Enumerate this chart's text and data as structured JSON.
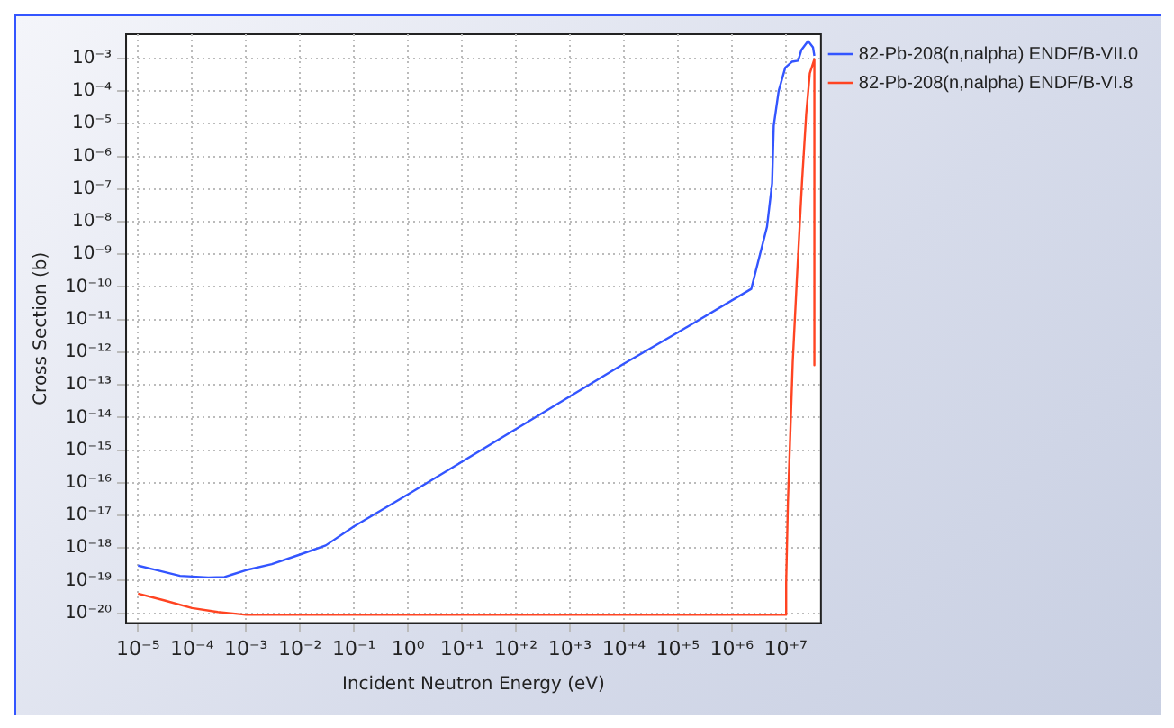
{
  "chart_data": {
    "type": "line",
    "xlabel": "Incident Neutron Energy (eV)",
    "ylabel": "Cross Section (b)",
    "log": "xy",
    "grid": true,
    "legend": "top right",
    "marker": "none",
    "line_style": "solid",
    "xlim": [
      6e-06,
      45000000.0
    ],
    "ylim": [
      5e-21,
      0.0055
    ],
    "xticks": [
      {
        "value": 1e-05,
        "label": "10⁻⁵"
      },
      {
        "value": 0.0001,
        "label": "10⁻⁴"
      },
      {
        "value": 0.001,
        "label": "10⁻³"
      },
      {
        "value": 0.01,
        "label": "10⁻²"
      },
      {
        "value": 0.1,
        "label": "10⁻¹"
      },
      {
        "value": 1,
        "label": "10⁰"
      },
      {
        "value": 10,
        "label": "10⁺¹"
      },
      {
        "value": 100,
        "label": "10⁺²"
      },
      {
        "value": 1000.0,
        "label": "10⁺³"
      },
      {
        "value": 10000.0,
        "label": "10⁺⁴"
      },
      {
        "value": 100000.0,
        "label": "10⁺⁵"
      },
      {
        "value": 1000000.0,
        "label": "10⁺⁶"
      },
      {
        "value": 10000000.0,
        "label": "10⁺⁷"
      }
    ],
    "yticks": [
      {
        "value": 1e-20,
        "label": "10⁻²⁰"
      },
      {
        "value": 1e-19,
        "label": "10⁻¹⁹"
      },
      {
        "value": 1e-18,
        "label": "10⁻¹⁸"
      },
      {
        "value": 1e-17,
        "label": "10⁻¹⁷"
      },
      {
        "value": 1e-16,
        "label": "10⁻¹⁶"
      },
      {
        "value": 1e-15,
        "label": "10⁻¹⁵"
      },
      {
        "value": 1e-14,
        "label": "10⁻¹⁴"
      },
      {
        "value": 1e-13,
        "label": "10⁻¹³"
      },
      {
        "value": 1e-12,
        "label": "10⁻¹²"
      },
      {
        "value": 1e-11,
        "label": "10⁻¹¹"
      },
      {
        "value": 1e-10,
        "label": "10⁻¹⁰"
      },
      {
        "value": 1e-09,
        "label": "10⁻⁹"
      },
      {
        "value": 1e-08,
        "label": "10⁻⁸"
      },
      {
        "value": 1e-07,
        "label": "10⁻⁷"
      },
      {
        "value": 1e-06,
        "label": "10⁻⁶"
      },
      {
        "value": 1e-05,
        "label": "10⁻⁵"
      },
      {
        "value": 0.0001,
        "label": "10⁻⁴"
      },
      {
        "value": 0.001,
        "label": "10⁻³"
      }
    ],
    "series": [
      {
        "name": "82-Pb-208(n,nalpha) ENDF/B-VII.0",
        "color": "#3355ff",
        "x": [
          1e-05,
          2e-05,
          6e-05,
          0.0002,
          0.0004,
          0.001,
          0.003,
          0.01,
          0.03,
          0.1,
          1,
          10,
          100,
          1000.0,
          10000.0,
          100000.0,
          2300000.0,
          4500000.0,
          5600000.0,
          6000000.0,
          7400000.0,
          9800000.0,
          13000000.0,
          17000000.0,
          19500000.0,
          26000000.0,
          32000000.0,
          34000000.0
        ],
        "values": [
          2.9e-19,
          2.2e-19,
          1.4e-19,
          1.26e-19,
          1.3e-19,
          2.1e-19,
          3.2e-19,
          6.3e-19,
          1.2e-18,
          4.6e-18,
          4.4e-17,
          4.4e-16,
          4.4e-15,
          4.4e-14,
          4.4e-13,
          4e-12,
          8.7e-11,
          6.9e-09,
          1.5e-07,
          8.7e-06,
          0.0001,
          0.00052,
          0.00079,
          0.00085,
          0.0018,
          0.0034,
          0.0022,
          0.0012
        ]
      },
      {
        "name": "82-Pb-208(n,nalpha) ENDF/B-VI.8",
        "color": "#ff4422",
        "x": [
          1e-05,
          3e-05,
          0.0001,
          0.0003,
          0.001,
          0.01,
          0.1,
          1,
          1000.0,
          1000000.0,
          10000000.0,
          10200000.0,
          11000000.0,
          12000000.0,
          13500000.0,
          16000000.0,
          20000000.0,
          24000000.0,
          28000000.0,
          34000000.0,
          34000000.0
        ],
        "values": [
          4e-20,
          2.5e-20,
          1.45e-20,
          1.1e-20,
          9e-21,
          9e-21,
          9e-21,
          9e-21,
          9e-21,
          9e-21,
          9e-21,
          8.7e-20,
          2.6e-17,
          1.6e-15,
          5e-13,
          1.4e-10,
          1.5e-07,
          2e-05,
          0.00035,
          0.00095,
          4e-13
        ]
      }
    ]
  }
}
